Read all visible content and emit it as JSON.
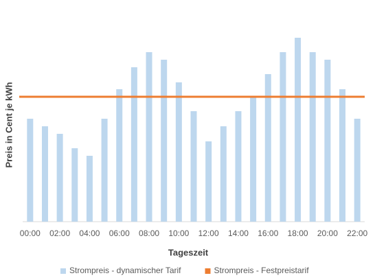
{
  "chart_data": {
    "type": "bar",
    "x_label": "Tageszeit",
    "y_label": "Preis in Cent je kWh",
    "categories": [
      "00:00",
      null,
      "02:00",
      null,
      "04:00",
      null,
      "06:00",
      null,
      "08:00",
      null,
      "10:00",
      null,
      "12:00",
      null,
      "14:00",
      null,
      "16:00",
      null,
      "18:00",
      null,
      "20:00",
      null,
      "22:00"
    ],
    "series": [
      {
        "name": "Strompreis - dynamischer Tarif",
        "type": "bar",
        "color": "#bdd7ee",
        "values": [
          15,
          13.9,
          12.8,
          10.7,
          9.6,
          15,
          19.3,
          22.5,
          24.7,
          23.6,
          20.3,
          16.1,
          11.7,
          13.9,
          16.1,
          18.2,
          21.5,
          24.7,
          26.8,
          24.7,
          23.6,
          19.3,
          15
        ]
      },
      {
        "name": "Strompreis - Festpreistarif",
        "type": "line",
        "color": "#ed7d31",
        "values": [
          18.2,
          18.2,
          18.2,
          18.2,
          18.2,
          18.2,
          18.2,
          18.2,
          18.2,
          18.2,
          18.2,
          18.2,
          18.2,
          18.2,
          18.2,
          18.2,
          18.2,
          18.2,
          18.2,
          18.2,
          18.2,
          18.2,
          18.2
        ]
      }
    ],
    "ylim": [
      0,
      28.3
    ],
    "legend": "bottom"
  }
}
